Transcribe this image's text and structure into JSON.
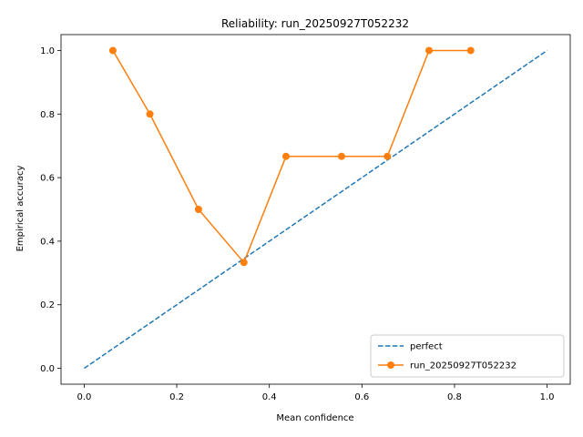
{
  "chart_data": {
    "type": "line",
    "title": "Reliability: run_20250927T052232",
    "xlabel": "Mean confidence",
    "ylabel": "Empirical accuracy",
    "xlim": [
      -0.05,
      1.05
    ],
    "ylim": [
      -0.05,
      1.05
    ],
    "x_ticks": [
      "0.0",
      "0.2",
      "0.4",
      "0.6",
      "0.8",
      "1.0"
    ],
    "y_ticks": [
      "0.0",
      "0.2",
      "0.4",
      "0.6",
      "0.8",
      "1.0"
    ],
    "grid": false,
    "legend_position": "bottom-right",
    "series": [
      {
        "name": "perfect",
        "style": "dashed",
        "marker": "none",
        "color": "#1f77b4",
        "x": [
          0.0,
          1.0
        ],
        "y": [
          0.0,
          1.0
        ]
      },
      {
        "name": "run_20250927T052232",
        "style": "solid",
        "marker": "circle",
        "color": "#ff7f0e",
        "x": [
          0.062,
          0.142,
          0.247,
          0.345,
          0.436,
          0.556,
          0.655,
          0.745,
          0.835
        ],
        "y": [
          1.0,
          0.8,
          0.5,
          0.333,
          0.667,
          0.667,
          0.667,
          1.0,
          1.0
        ]
      }
    ]
  }
}
